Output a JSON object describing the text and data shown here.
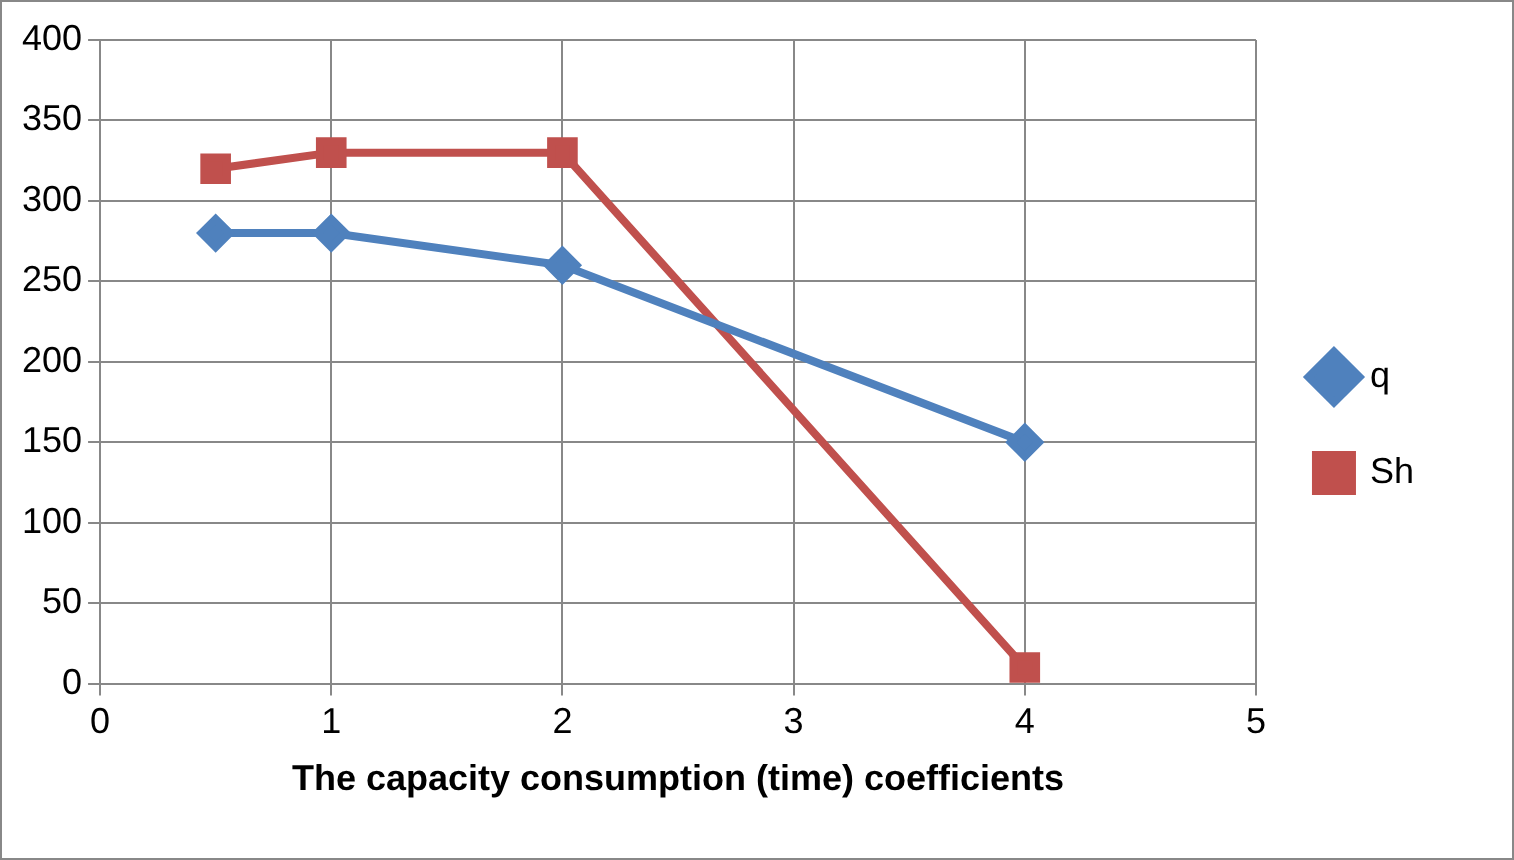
{
  "chart_data": {
    "type": "line",
    "xlabel": "The capacity consumption (time) coefficients",
    "xlim": [
      0,
      5
    ],
    "xticks": [
      0,
      1,
      2,
      3,
      4,
      5
    ],
    "ylim": [
      0,
      400
    ],
    "yticks": [
      0,
      50,
      100,
      150,
      200,
      250,
      300,
      350,
      400
    ],
    "grid": true,
    "legend": "right",
    "line_style": "solid",
    "series": [
      {
        "name": "q",
        "color": "#4f81bd",
        "marker": "diamond",
        "x": [
          0.5,
          1,
          2,
          4
        ],
        "values": [
          280,
          280,
          260,
          150
        ]
      },
      {
        "name": "Sh",
        "color": "#c0504d",
        "marker": "square",
        "x": [
          0.5,
          1,
          2,
          4
        ],
        "values": [
          320,
          330,
          330,
          10
        ]
      }
    ]
  }
}
